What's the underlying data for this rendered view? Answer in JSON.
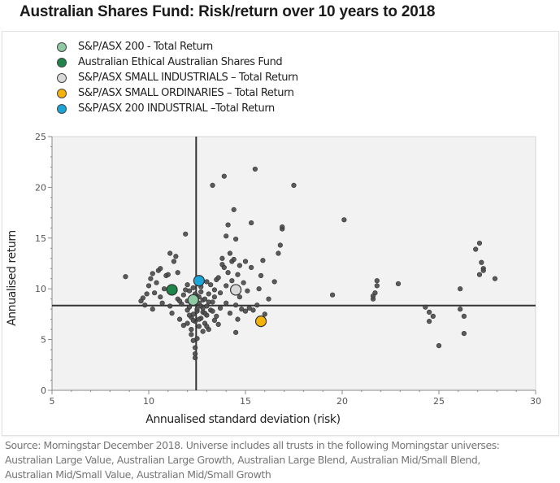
{
  "title": "Australian Shares Fund: Risk/return over 10 years to 2018",
  "source": [
    "Source: Morningstar December 2018.  Universe includes all trusts in the following Morningstar universes:",
    "Australian Large Value, Australian Large Growth, Australian Large Blend, Australian Mid/Small Blend,",
    "Australian Mid/Small Value, Australian Mid/Small Growth"
  ],
  "chart_data": {
    "type": "scatter",
    "title": "Australian Shares Fund: Risk/return over 10 years to 2018",
    "xlabel": "Annualised standard deviation (risk)",
    "ylabel": "Annualised return",
    "xlim": [
      5,
      30
    ],
    "ylim": [
      0,
      25
    ],
    "xticks": [
      "5",
      "10",
      "15",
      "20",
      "25",
      "30"
    ],
    "yticks": [
      "0",
      "5",
      "10",
      "15",
      "20",
      "25"
    ],
    "grid": false,
    "legend_position": "top-left",
    "reference_lines": {
      "x": 12.45,
      "y": 8.35
    },
    "colors": {
      "plot_bg": "#f2f2f2",
      "point": "#4a4a4a",
      "axis": "#888888",
      "reference": "#333333"
    },
    "highlighted": [
      {
        "name": "S&P/ASX 200  - Total Return",
        "x": 12.3,
        "y": 8.9,
        "color": "#8fcaa4"
      },
      {
        "name": "Australian Ethical Australian Shares Fund",
        "x": 11.2,
        "y": 9.9,
        "color": "#1e8449"
      },
      {
        "name": "S&P/ASX SMALL INDUSTRIALS – Total Return",
        "x": 14.5,
        "y": 9.9,
        "color": "#d9d9d9"
      },
      {
        "name": "S&P/ASX SMALL ORDINARIES – Total Return",
        "x": 15.8,
        "y": 6.8,
        "color": "#f5b30a"
      },
      {
        "name": "S&P/ASX 200 INDUSTRIAL –Total Return",
        "x": 12.6,
        "y": 10.8,
        "color": "#1aa6d9"
      }
    ],
    "series": [
      {
        "name": "Funds universe",
        "points": [
          [
            8.8,
            11.2
          ],
          [
            9.6,
            8.8
          ],
          [
            9.7,
            9.1
          ],
          [
            9.8,
            8.4
          ],
          [
            9.9,
            9.5
          ],
          [
            10.0,
            10.3
          ],
          [
            10.1,
            11.0
          ],
          [
            10.2,
            11.5
          ],
          [
            10.2,
            8.0
          ],
          [
            10.3,
            9.6
          ],
          [
            10.4,
            10.6
          ],
          [
            10.5,
            11.8
          ],
          [
            10.6,
            12.0
          ],
          [
            10.6,
            9.2
          ],
          [
            10.7,
            8.6
          ],
          [
            10.8,
            10.0
          ],
          [
            10.9,
            11.3
          ],
          [
            11.0,
            11.4
          ],
          [
            11.1,
            13.5
          ],
          [
            11.1,
            8.3
          ],
          [
            11.2,
            7.6
          ],
          [
            11.3,
            12.7
          ],
          [
            11.4,
            13.2
          ],
          [
            11.5,
            9.0
          ],
          [
            11.5,
            11.6
          ],
          [
            11.6,
            7.0
          ],
          [
            11.7,
            8.5
          ],
          [
            11.8,
            9.4
          ],
          [
            11.8,
            6.4
          ],
          [
            11.9,
            15.4
          ],
          [
            12.0,
            10.4
          ],
          [
            12.0,
            7.9
          ],
          [
            12.1,
            8.2
          ],
          [
            12.1,
            9.8
          ],
          [
            12.2,
            7.2
          ],
          [
            12.2,
            6.0
          ],
          [
            12.2,
            5.5
          ],
          [
            12.3,
            4.9
          ],
          [
            12.3,
            7.5
          ],
          [
            12.3,
            10.1
          ],
          [
            12.4,
            4.2
          ],
          [
            12.4,
            3.6
          ],
          [
            12.4,
            3.2
          ],
          [
            12.4,
            6.8
          ],
          [
            12.5,
            7.8
          ],
          [
            12.5,
            9.3
          ],
          [
            12.5,
            8.0
          ],
          [
            12.6,
            6.3
          ],
          [
            12.6,
            8.6
          ],
          [
            12.7,
            7.1
          ],
          [
            12.7,
            9.7
          ],
          [
            12.7,
            10.2
          ],
          [
            12.8,
            5.8
          ],
          [
            12.8,
            8.9
          ],
          [
            12.8,
            7.7
          ],
          [
            12.9,
            6.6
          ],
          [
            12.9,
            9.0
          ],
          [
            13.0,
            7.4
          ],
          [
            13.0,
            10.7
          ],
          [
            13.0,
            8.3
          ],
          [
            13.1,
            6.0
          ],
          [
            13.1,
            9.5
          ],
          [
            13.2,
            7.9
          ],
          [
            13.2,
            10.4
          ],
          [
            13.3,
            20.2
          ],
          [
            13.3,
            8.7
          ],
          [
            13.4,
            6.9
          ],
          [
            13.4,
            9.2
          ],
          [
            13.5,
            10.9
          ],
          [
            13.5,
            7.3
          ],
          [
            13.6,
            11.1
          ],
          [
            13.6,
            6.5
          ],
          [
            13.7,
            9.6
          ],
          [
            13.7,
            8.1
          ],
          [
            13.8,
            12.4
          ],
          [
            13.8,
            13.0
          ],
          [
            13.9,
            21.1
          ],
          [
            13.9,
            12.1
          ],
          [
            14.0,
            10.3
          ],
          [
            14.0,
            8.6
          ],
          [
            14.0,
            15.2
          ],
          [
            14.1,
            16.3
          ],
          [
            14.1,
            11.6
          ],
          [
            14.2,
            13.5
          ],
          [
            14.2,
            7.6
          ],
          [
            14.3,
            12.7
          ],
          [
            14.3,
            10.8
          ],
          [
            14.4,
            17.8
          ],
          [
            14.4,
            12.9
          ],
          [
            14.5,
            14.9
          ],
          [
            14.5,
            8.4
          ],
          [
            14.5,
            5.7
          ],
          [
            14.6,
            11.4
          ],
          [
            14.6,
            7.0
          ],
          [
            14.7,
            12.3
          ],
          [
            14.7,
            9.2
          ],
          [
            14.8,
            8.0
          ],
          [
            14.9,
            10.6
          ],
          [
            15.0,
            12.7
          ],
          [
            15.0,
            7.8
          ],
          [
            15.1,
            9.8
          ],
          [
            15.2,
            8.1
          ],
          [
            15.3,
            12.1
          ],
          [
            15.3,
            16.5
          ],
          [
            15.4,
            7.9
          ],
          [
            15.5,
            21.8
          ],
          [
            15.6,
            8.4
          ],
          [
            15.7,
            10.0
          ],
          [
            15.8,
            11.3
          ],
          [
            15.9,
            12.8
          ],
          [
            16.0,
            7.5
          ],
          [
            16.2,
            9.0
          ],
          [
            16.5,
            10.7
          ],
          [
            16.7,
            13.5
          ],
          [
            16.8,
            14.3
          ],
          [
            16.9,
            15.9
          ],
          [
            16.9,
            16.1
          ],
          [
            17.5,
            20.2
          ],
          [
            19.5,
            9.4
          ],
          [
            20.1,
            16.8
          ],
          [
            21.6,
            9.0
          ],
          [
            21.6,
            9.3
          ],
          [
            21.7,
            9.6
          ],
          [
            21.8,
            10.3
          ],
          [
            21.8,
            10.8
          ],
          [
            22.9,
            10.5
          ],
          [
            24.3,
            8.2
          ],
          [
            24.5,
            7.7
          ],
          [
            24.5,
            6.8
          ],
          [
            24.7,
            7.3
          ],
          [
            25.0,
            4.4
          ],
          [
            26.1,
            10.0
          ],
          [
            26.1,
            8.0
          ],
          [
            26.3,
            5.6
          ],
          [
            26.3,
            7.3
          ],
          [
            26.9,
            13.9
          ],
          [
            27.1,
            14.5
          ],
          [
            27.1,
            11.4
          ],
          [
            27.2,
            12.6
          ],
          [
            27.3,
            12.0
          ],
          [
            27.3,
            11.8
          ],
          [
            27.9,
            11.0
          ],
          [
            12.0,
            8.8
          ],
          [
            12.1,
            7.4
          ],
          [
            12.2,
            8.5
          ],
          [
            12.3,
            6.9
          ],
          [
            12.4,
            9.5
          ],
          [
            12.6,
            7.0
          ],
          [
            12.7,
            8.3
          ],
          [
            12.9,
            7.6
          ],
          [
            13.1,
            8.7
          ],
          [
            13.3,
            7.8
          ],
          [
            12.2,
            9.1
          ],
          [
            12.6,
            9.2
          ],
          [
            12.4,
            8.6
          ],
          [
            12.8,
            8.1
          ],
          [
            12.0,
            6.6
          ],
          [
            11.6,
            8.8
          ],
          [
            11.9,
            9.9
          ],
          [
            13.4,
            9.9
          ],
          [
            13.0,
            6.3
          ],
          [
            12.5,
            5.1
          ]
        ]
      }
    ]
  }
}
